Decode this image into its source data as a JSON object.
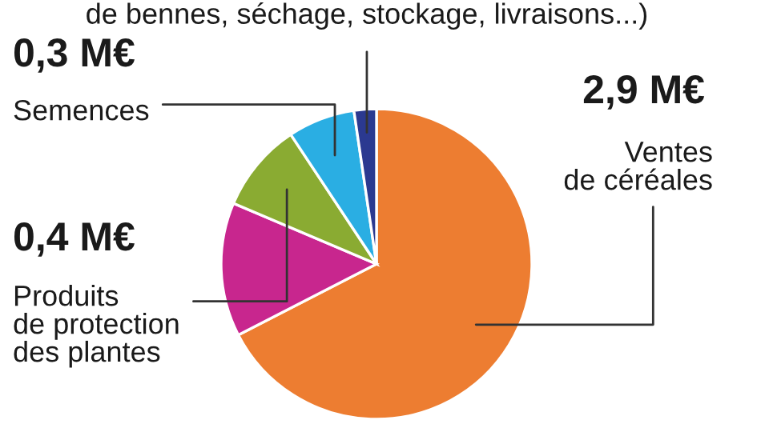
{
  "chart_data": {
    "type": "pie",
    "categories": [
      "Ventes\nde céréales",
      null,
      "Produits\nde protection\ndes plantes",
      "Semences",
      null
    ],
    "values": [
      2.9,
      0.6,
      0.4,
      0.3,
      0.1
    ],
    "colors": [
      "#ed7d31",
      "#c8268e",
      "#8aab32",
      "#2aaee3",
      "#2b3990"
    ],
    "value_labels": [
      "2,9 M€",
      null,
      "0,4 M€",
      "0,3 M€",
      null
    ],
    "annotations": [
      "de bennes, séchage, stockage, livraisons...)"
    ]
  }
}
